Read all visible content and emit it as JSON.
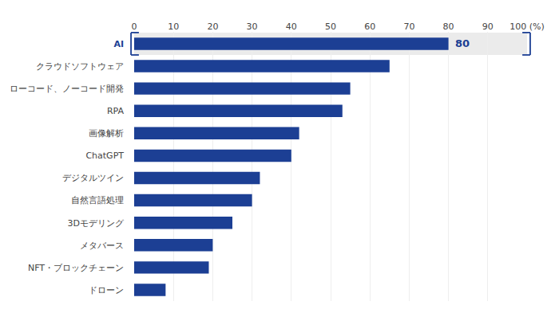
{
  "chart_data": {
    "type": "bar",
    "orientation": "horizontal",
    "categories": [
      "ドローン",
      "NFT・ブロックチェーン",
      "メタバース",
      "3Dモデリング",
      "自然言語処理",
      "デジタルツイン",
      "ChatGPT",
      "画像解析",
      "RPA",
      "ローコード、ノーコード開発",
      "クラウドソフトウェア",
      "AI"
    ],
    "values": [
      8,
      19,
      20,
      25,
      30,
      32,
      40,
      42,
      53,
      55,
      65,
      80
    ],
    "color": "#1c3f94",
    "xlim": [
      0,
      100
    ],
    "xticks": [
      0,
      10,
      20,
      30,
      40,
      50,
      60,
      70,
      80,
      90,
      {
        "value": 100,
        "label": "100 (%)"
      }
    ],
    "grid": true,
    "annotations": [
      {
        "text": "80",
        "category": "AI"
      }
    ]
  }
}
